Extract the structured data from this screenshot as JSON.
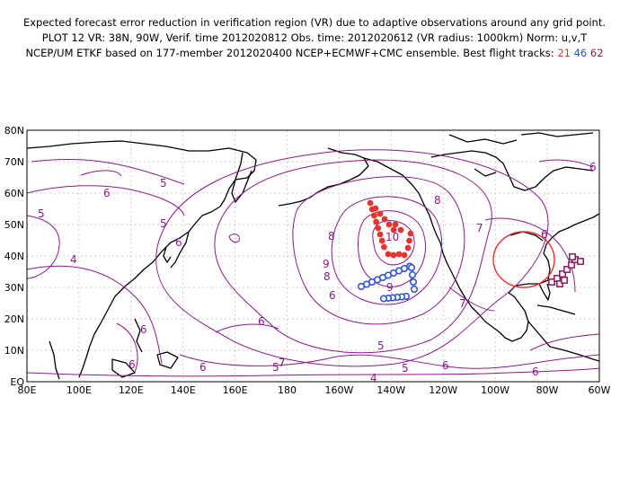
{
  "title": {
    "line1": "Expected forecast error reduction in verification region (VR) due to adaptive observations around any grid point.",
    "line2": "PLOT 12 VR: 38N, 90W, Verif. time 2012020812 Obs. time: 2012020612 (VR radius: 1000km) Norm: u,v,T",
    "line3_prefix": "NCEP/UM ETKF based on 177-member 2012020400 NCEP+ECMWF+CMC ensemble. Best flight tracks:",
    "track_a": "21",
    "track_b": "46",
    "track_c": "62"
  },
  "axes": {
    "x_ticks": [
      "80E",
      "100E",
      "120E",
      "140E",
      "160E",
      "180",
      "160W",
      "140W",
      "120W",
      "100W",
      "80W",
      "60W"
    ],
    "y_ticks": [
      "80N",
      "70N",
      "60N",
      "50N",
      "40N",
      "30N",
      "20N",
      "10N",
      "EQ"
    ]
  },
  "contour_labels": [
    "4",
    "5",
    "6",
    "7",
    "8",
    "9",
    "10"
  ],
  "colors": {
    "contour": "#8b1a8b",
    "track_21": "#e8342e",
    "track_46": "#2b4fd8",
    "track_62": "#8b1a5a",
    "verification_circle": "#e8342e",
    "grid": "#bdbdbd",
    "coast": "#000000"
  },
  "verification_region": {
    "lat": 38,
    "lon": -90
  }
}
